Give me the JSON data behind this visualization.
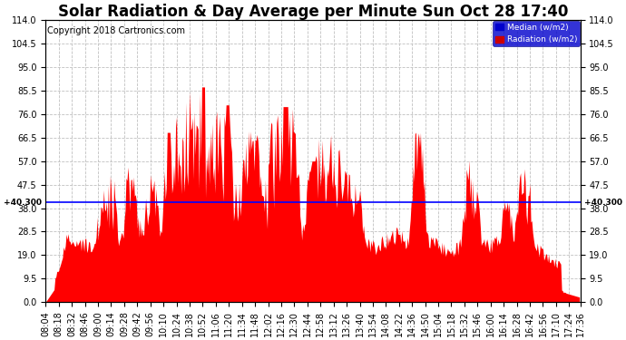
{
  "title": "Solar Radiation & Day Average per Minute Sun Oct 28 17:40",
  "copyright": "Copyright 2018 Cartronics.com",
  "median_value": 40.3,
  "ymin": 0.0,
  "ymax": 114.0,
  "yticks": [
    0.0,
    9.5,
    19.0,
    28.5,
    38.0,
    47.5,
    57.0,
    66.5,
    76.0,
    85.5,
    95.0,
    104.5,
    114.0
  ],
  "background_color": "#ffffff",
  "grid_color": "#c0c0c0",
  "radiation_color": "#ff0000",
  "median_line_color": "#0000ff",
  "legend_median_bg": "#0000cc",
  "legend_radiation_bg": "#cc0000",
  "title_fontsize": 12,
  "copyright_fontsize": 7,
  "tick_fontsize": 7,
  "xtick_labels": [
    "08:04",
    "08:18",
    "08:32",
    "08:46",
    "09:00",
    "09:14",
    "09:28",
    "09:42",
    "09:56",
    "10:10",
    "10:24",
    "10:38",
    "10:52",
    "11:06",
    "11:20",
    "11:34",
    "11:48",
    "12:02",
    "12:16",
    "12:30",
    "12:44",
    "12:58",
    "13:12",
    "13:26",
    "13:40",
    "13:54",
    "14:08",
    "14:22",
    "14:36",
    "14:50",
    "15:04",
    "15:18",
    "15:32",
    "15:46",
    "16:00",
    "16:14",
    "16:28",
    "16:42",
    "16:56",
    "17:10",
    "17:24",
    "17:36"
  ]
}
